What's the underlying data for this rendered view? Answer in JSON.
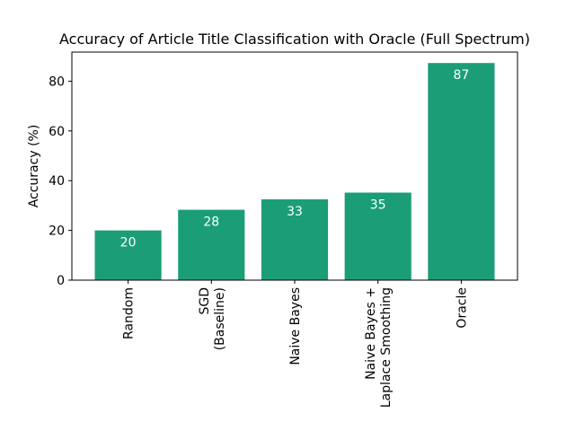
{
  "chart_data": {
    "type": "bar",
    "title": "Accuracy of Article Title Classification with Oracle (Full Spectrum)",
    "xlabel": "",
    "ylabel": "Accuracy (%)",
    "categories": [
      [
        "Random"
      ],
      [
        "SGD",
        "(Baseline)"
      ],
      [
        "Naive Bayes"
      ],
      [
        "Naive Bayes +",
        "Laplace Smoothing"
      ],
      [
        "Oracle"
      ]
    ],
    "values": [
      20,
      28.3,
      32.5,
      35.2,
      87.3
    ],
    "data_labels": [
      "20",
      "28",
      "33",
      "35",
      "87"
    ],
    "ylim": [
      0,
      91.7
    ],
    "yticks": [
      0,
      20,
      40,
      60,
      80
    ],
    "bar_color": "#1b9e77",
    "grid": false,
    "legend": "none"
  }
}
